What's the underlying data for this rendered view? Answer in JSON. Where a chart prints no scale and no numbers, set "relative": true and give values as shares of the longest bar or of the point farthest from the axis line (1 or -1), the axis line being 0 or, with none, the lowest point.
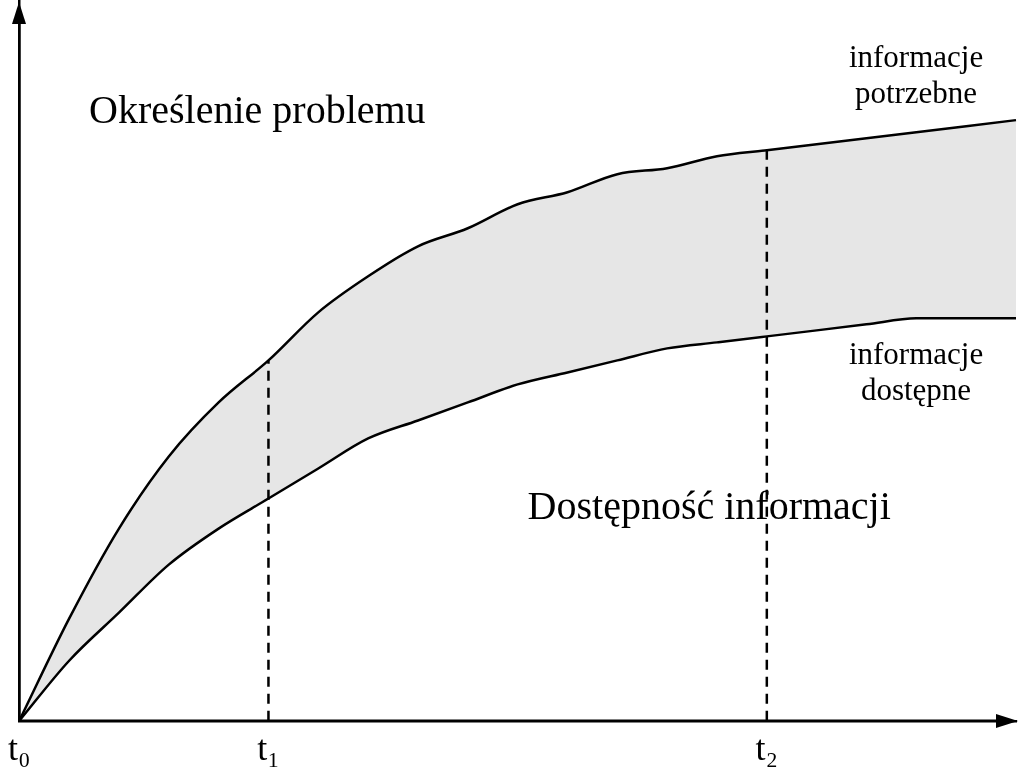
{
  "chart_data": {
    "type": "line",
    "relative": true,
    "categories": [
      "t₀",
      null,
      null,
      null,
      null,
      "t₁",
      null,
      null,
      null,
      null,
      null,
      null,
      null,
      null,
      null,
      "t₂",
      null,
      null,
      null,
      null,
      null
    ],
    "series": [
      {
        "name": "informacje potrzebne",
        "color": "#000000",
        "values": [
          0,
          0.17,
          0.32,
          0.44,
          0.53,
          0.6,
          0.68,
          0.74,
          0.79,
          0.82,
          0.86,
          0.88,
          0.91,
          0.92,
          0.94,
          0.95,
          0.96,
          0.97,
          0.98,
          0.99,
          1
        ],
        "lower": [
          0,
          0.1,
          0.18,
          0.26,
          0.32,
          0.37,
          0.42,
          0.47,
          0.5,
          0.53,
          0.56,
          0.58,
          0.6,
          0.62,
          0.63,
          0.64,
          0.65,
          0.66,
          0.67,
          0.67,
          0.67
        ],
        "upper": [
          0,
          0.17,
          0.32,
          0.44,
          0.53,
          0.6,
          0.68,
          0.74,
          0.79,
          0.82,
          0.86,
          0.88,
          0.91,
          0.92,
          0.94,
          0.95,
          0.96,
          0.97,
          0.98,
          0.99,
          1
        ]
      },
      {
        "name": "informacje dostępne",
        "color": "#000000",
        "values": [
          0,
          0.1,
          0.18,
          0.26,
          0.32,
          0.37,
          0.42,
          0.47,
          0.5,
          0.53,
          0.56,
          0.58,
          0.6,
          0.62,
          0.63,
          0.64,
          0.65,
          0.66,
          0.67,
          0.67,
          0.67
        ]
      }
    ],
    "ref_lines": [
      {
        "axis": "x",
        "value": "t₁",
        "line_style": "dashed",
        "color": "#000000"
      },
      {
        "axis": "x",
        "value": "t₂",
        "line_style": "dashed",
        "color": "#000000"
      }
    ],
    "annotations": [
      "Określenie problemu",
      "Dostępność informacji"
    ],
    "grid": false,
    "legend": false,
    "marker": "none",
    "line_style": "solid",
    "tick_labels": "x"
  }
}
